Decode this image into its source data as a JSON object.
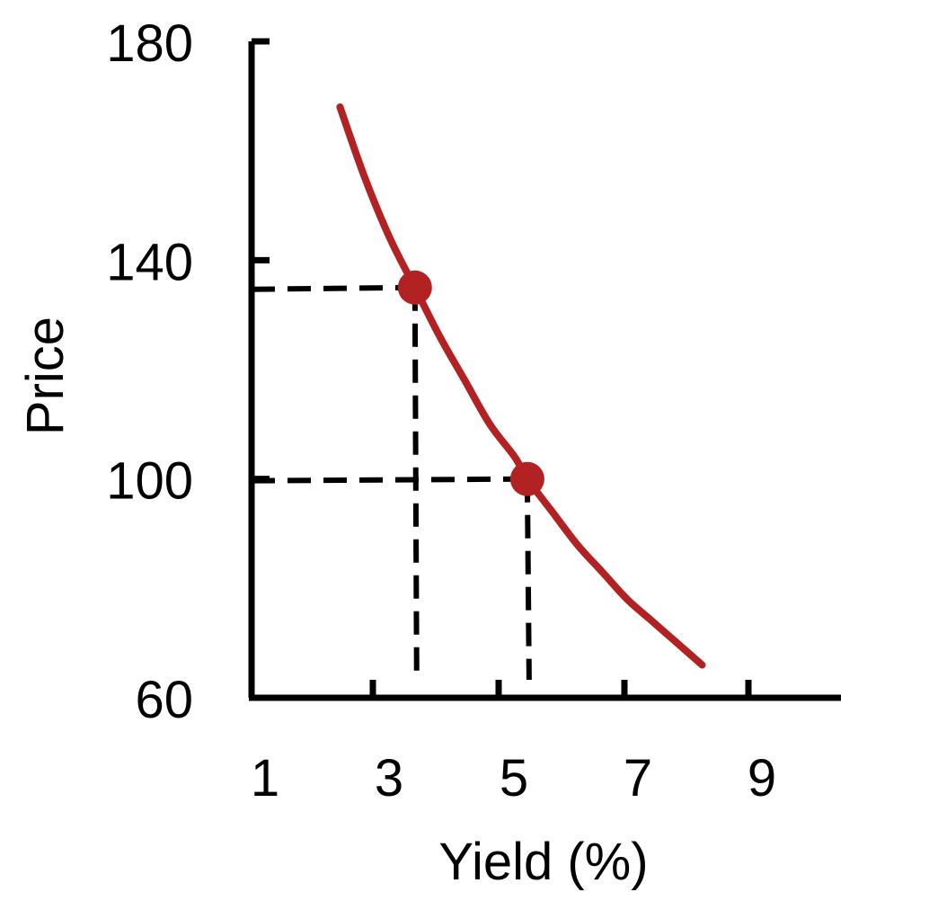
{
  "chart_data": {
    "type": "line",
    "title": "",
    "xlabel": "Yield (%)",
    "ylabel": "Price",
    "xlim": [
      0.9,
      10.4
    ],
    "ylim": [
      60,
      180
    ],
    "x_ticks": [
      1,
      3,
      5,
      7,
      9
    ],
    "y_ticks": [
      60,
      100,
      140,
      180
    ],
    "grid": false,
    "legend": "none",
    "series": [
      {
        "color": "#b22222",
        "points": [
          {
            "x": 2.2,
            "y": 168
          },
          {
            "x": 2.6,
            "y": 155
          },
          {
            "x": 3.0,
            "y": 144
          },
          {
            "x": 3.4,
            "y": 135
          },
          {
            "x": 3.8,
            "y": 126
          },
          {
            "x": 4.2,
            "y": 118
          },
          {
            "x": 4.6,
            "y": 110
          },
          {
            "x": 5.0,
            "y": 104
          },
          {
            "x": 5.2,
            "y": 100
          },
          {
            "x": 5.6,
            "y": 94
          },
          {
            "x": 6.0,
            "y": 88
          },
          {
            "x": 6.4,
            "y": 83
          },
          {
            "x": 6.8,
            "y": 78
          },
          {
            "x": 7.2,
            "y": 74
          },
          {
            "x": 7.6,
            "y": 70
          },
          {
            "x": 8.0,
            "y": 66
          }
        ]
      }
    ],
    "highlighted_points": [
      {
        "x": 3.4,
        "y": 135
      },
      {
        "x": 5.2,
        "y": 100
      }
    ]
  }
}
